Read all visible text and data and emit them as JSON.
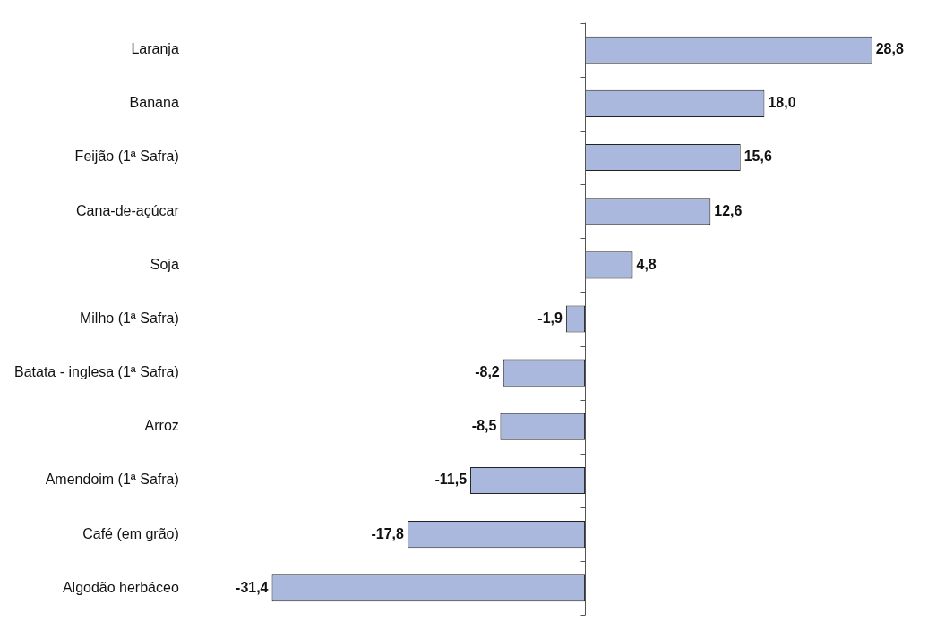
{
  "chart_data": {
    "type": "bar",
    "orientation": "horizontal",
    "categories": [
      "Laranja",
      "Banana",
      "Feijão (1ª Safra)",
      "Cana-de-açúcar",
      "Soja",
      "Milho (1ª Safra)",
      "Batata - inglesa (1ª Safra)",
      "Arroz",
      "Amendoim (1ª Safra)",
      "Café (em grão)",
      "Algodão herbáceo"
    ],
    "values": [
      28.8,
      18.0,
      15.6,
      12.6,
      4.8,
      -1.9,
      -8.2,
      -8.5,
      -11.5,
      -17.8,
      -31.4
    ],
    "value_labels": [
      "28,8",
      "18,0",
      "15,6",
      "12,6",
      "4,8",
      "-1,9",
      "-8,2",
      "-8,5",
      "-11,5",
      "-17,8",
      "-31,4"
    ],
    "color": "#a9b8dc",
    "tick_labels": "y",
    "grid": false,
    "legend": false
  }
}
